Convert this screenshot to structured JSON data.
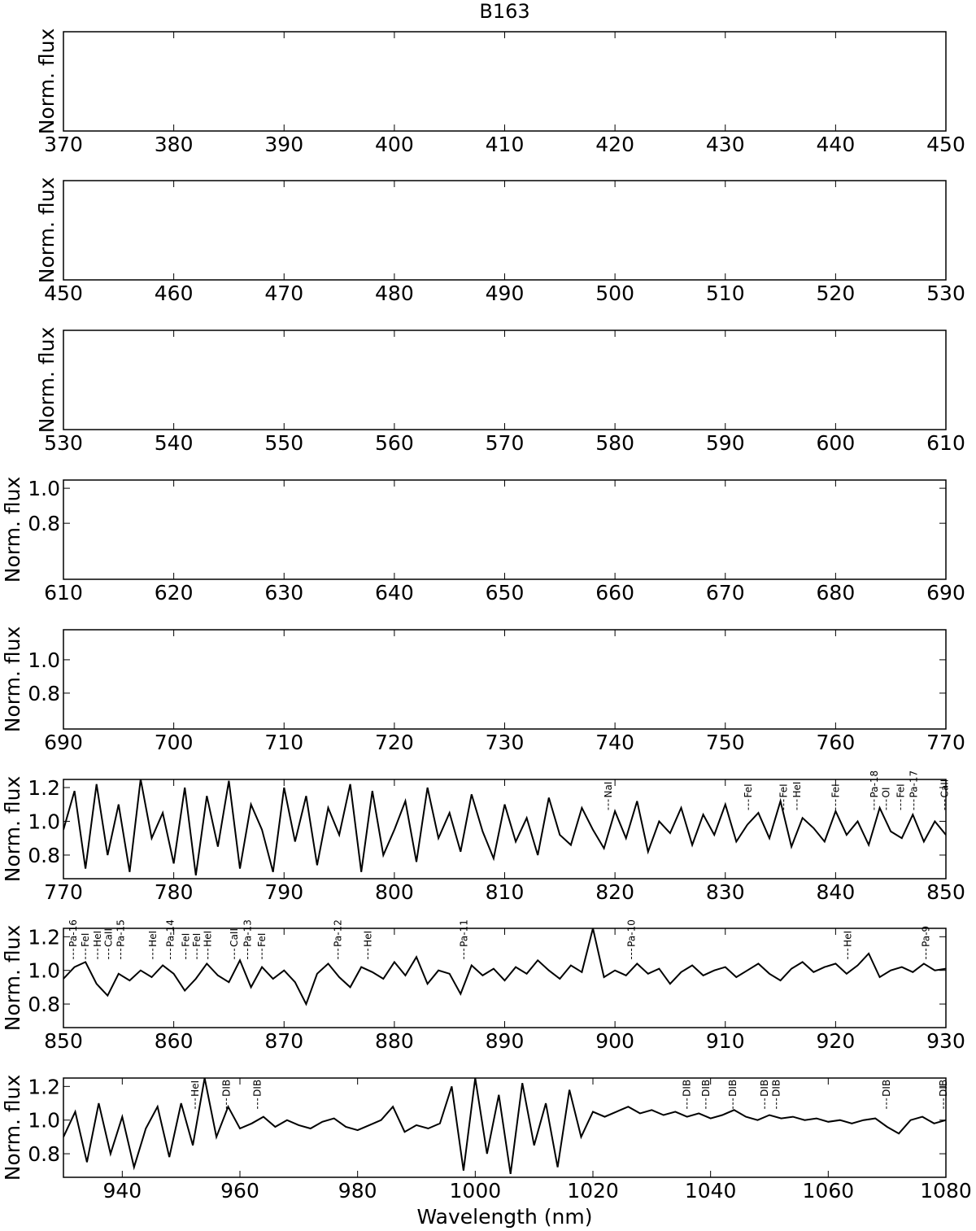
{
  "chart_data": [
    {
      "type": "line",
      "title": "B163",
      "ylabel": "Norm. flux",
      "xlim": [
        370,
        450
      ],
      "xticks": [
        370,
        380,
        390,
        400,
        410,
        420,
        430,
        440,
        450
      ]
    },
    {
      "type": "line",
      "ylabel": "Norm. flux",
      "xlim": [
        450,
        530
      ],
      "xticks": [
        450,
        460,
        470,
        480,
        490,
        500,
        510,
        520,
        530
      ]
    },
    {
      "type": "line",
      "ylabel": "Norm. flux",
      "xlim": [
        530,
        610
      ],
      "xticks": [
        530,
        540,
        550,
        560,
        570,
        580,
        590,
        600,
        610
      ]
    },
    {
      "type": "line",
      "ylabel": "Norm. flux",
      "xlim": [
        610,
        690
      ],
      "xticks": [
        610,
        620,
        630,
        640,
        650,
        660,
        670,
        680,
        690
      ],
      "ylim": [
        0.48,
        1.047
      ],
      "yticks": [
        0.8,
        {
          "value": 1.0,
          "label": "1.0"
        }
      ]
    },
    {
      "type": "line",
      "ylabel": "Norm. flux",
      "xlim": [
        690,
        770
      ],
      "xticks": [
        690,
        700,
        710,
        720,
        730,
        740,
        750,
        760,
        770
      ],
      "ylim": [
        0.585,
        1.18
      ],
      "yticks": [
        0.8,
        {
          "value": 1.0,
          "label": "1.0"
        }
      ]
    },
    {
      "type": "line",
      "ylabel": "Norm. flux",
      "xlim": [
        770,
        850
      ],
      "xticks": [
        770,
        780,
        790,
        800,
        810,
        820,
        830,
        840,
        850
      ],
      "ylim": [
        0.66,
        1.248
      ],
      "yticks": [
        0.8,
        {
          "value": 1.0,
          "label": "1.0"
        },
        1.2
      ],
      "color": "#000000",
      "x": [
        770,
        771,
        772,
        773,
        774,
        775,
        776,
        777,
        778,
        779,
        780,
        781,
        782,
        783,
        784,
        785,
        786,
        787,
        788,
        789,
        790,
        791,
        792,
        793,
        794,
        795,
        796,
        797,
        798,
        799,
        800,
        801,
        802,
        803,
        804,
        805,
        806,
        807,
        808,
        809,
        810,
        811,
        812,
        813,
        814,
        815,
        816,
        817,
        818,
        819,
        820,
        821,
        822,
        823,
        824,
        825,
        826,
        827,
        828,
        829,
        830,
        831,
        832,
        833,
        834,
        835,
        836,
        837,
        838,
        839,
        840,
        841,
        842,
        843,
        844,
        845,
        846,
        847,
        848,
        849,
        850
      ],
      "values": [
        0.95,
        1.18,
        0.72,
        1.22,
        0.8,
        1.1,
        0.7,
        1.25,
        0.9,
        1.05,
        0.75,
        1.2,
        0.68,
        1.15,
        0.85,
        1.24,
        0.72,
        1.1,
        0.95,
        0.7,
        1.2,
        0.88,
        1.15,
        0.74,
        1.08,
        0.92,
        1.22,
        0.7,
        1.18,
        0.8,
        0.95,
        1.12,
        0.76,
        1.2,
        0.9,
        1.05,
        0.82,
        1.16,
        0.94,
        0.78,
        1.1,
        0.88,
        1.02,
        0.8,
        1.14,
        0.92,
        0.86,
        1.08,
        0.95,
        0.84,
        1.06,
        0.9,
        1.12,
        0.82,
        1.0,
        0.93,
        1.08,
        0.86,
        1.04,
        0.92,
        1.1,
        0.88,
        0.98,
        1.05,
        0.9,
        1.12,
        0.85,
        1.02,
        0.96,
        0.88,
        1.06,
        0.92,
        1.0,
        0.86,
        1.08,
        0.94,
        0.9,
        1.04,
        0.88,
        1.0,
        0.92
      ],
      "annotations": [
        {
          "x": 819.4,
          "label": "NaI"
        },
        {
          "x": 832.1,
          "label": "FeI"
        },
        {
          "x": 835.3,
          "label": "FeI"
        },
        {
          "x": 836.5,
          "label": "HeI"
        },
        {
          "x": 840.0,
          "label": "FeI"
        },
        {
          "x": 843.5,
          "label": "Pa-18"
        },
        {
          "x": 844.6,
          "label": "OI"
        },
        {
          "x": 845.9,
          "label": "FeI"
        },
        {
          "x": 847.1,
          "label": "Pa-17"
        },
        {
          "x": 849.9,
          "label": "CaII"
        }
      ]
    },
    {
      "type": "line",
      "ylabel": "Norm. flux",
      "xlim": [
        850,
        930
      ],
      "xticks": [
        850,
        860,
        870,
        880,
        890,
        900,
        910,
        920,
        930
      ],
      "ylim": [
        0.66,
        1.25
      ],
      "yticks": [
        0.8,
        {
          "value": 1.0,
          "label": "1.0"
        },
        1.2
      ],
      "color": "#000000",
      "x": [
        850,
        851,
        852,
        853,
        854,
        855,
        856,
        857,
        858,
        859,
        860,
        861,
        862,
        863,
        864,
        865,
        866,
        867,
        868,
        869,
        870,
        871,
        872,
        873,
        874,
        875,
        876,
        877,
        878,
        879,
        880,
        881,
        882,
        883,
        884,
        885,
        886,
        887,
        888,
        889,
        890,
        891,
        892,
        893,
        894,
        895,
        896,
        897,
        898,
        899,
        900,
        901,
        902,
        903,
        904,
        905,
        906,
        907,
        908,
        909,
        910,
        911,
        912,
        913,
        914,
        915,
        916,
        917,
        918,
        919,
        920,
        921,
        922,
        923,
        924,
        925,
        926,
        927,
        928,
        929,
        930
      ],
      "values": [
        0.95,
        1.02,
        1.05,
        0.92,
        0.85,
        0.98,
        0.94,
        1.0,
        0.96,
        1.03,
        0.98,
        0.88,
        0.95,
        1.04,
        0.97,
        0.93,
        1.06,
        0.9,
        1.02,
        0.95,
        1.0,
        0.93,
        0.8,
        0.98,
        1.04,
        0.96,
        0.9,
        1.02,
        0.99,
        0.95,
        1.05,
        0.97,
        1.08,
        0.92,
        1.0,
        0.98,
        0.86,
        1.03,
        0.97,
        1.01,
        0.94,
        1.02,
        0.98,
        1.06,
        1.0,
        0.95,
        1.03,
        0.99,
        1.25,
        0.96,
        1.0,
        0.97,
        1.04,
        0.98,
        1.01,
        0.92,
        0.99,
        1.03,
        0.97,
        1.0,
        1.02,
        0.96,
        1.0,
        1.04,
        0.98,
        0.94,
        1.01,
        1.05,
        0.99,
        1.02,
        1.04,
        0.98,
        1.03,
        1.1,
        0.96,
        1.0,
        1.02,
        0.99,
        1.04,
        1.0,
        1.01
      ],
      "annotations": [
        {
          "x": 850.9,
          "label": "Pa-16"
        },
        {
          "x": 852.0,
          "label": "FeI"
        },
        {
          "x": 853.1,
          "label": "HeI"
        },
        {
          "x": 854.1,
          "label": "CaII"
        },
        {
          "x": 855.2,
          "label": "Pa-15"
        },
        {
          "x": 858.1,
          "label": "HeI"
        },
        {
          "x": 859.7,
          "label": "Pa-14"
        },
        {
          "x": 861.1,
          "label": "FeI"
        },
        {
          "x": 862.1,
          "label": "FeI"
        },
        {
          "x": 863.1,
          "label": "HeI"
        },
        {
          "x": 865.5,
          "label": "CaII"
        },
        {
          "x": 866.7,
          "label": "Pa-13"
        },
        {
          "x": 868.0,
          "label": "FeI"
        },
        {
          "x": 874.9,
          "label": "Pa-12"
        },
        {
          "x": 877.6,
          "label": "HeI"
        },
        {
          "x": 886.3,
          "label": "Pa-11"
        },
        {
          "x": 901.5,
          "label": "Pa-10"
        },
        {
          "x": 921.1,
          "label": "HeI"
        },
        {
          "x": 928.2,
          "label": "Pa-9"
        }
      ]
    },
    {
      "type": "line",
      "ylabel": "Norm. flux",
      "xlabel": "Wavelength (nm)",
      "xlim": [
        930,
        1080
      ],
      "xticks": [
        940,
        960,
        980,
        1000,
        1020,
        1040,
        1060,
        1080
      ],
      "ylim": [
        0.66,
        1.25
      ],
      "yticks": [
        0.8,
        {
          "value": 1.0,
          "label": "1.0"
        },
        1.2
      ],
      "color": "#000000",
      "x": [
        930,
        932,
        934,
        936,
        938,
        940,
        942,
        944,
        946,
        948,
        950,
        952,
        954,
        956,
        958,
        960,
        962,
        964,
        966,
        968,
        970,
        972,
        974,
        976,
        978,
        980,
        982,
        984,
        986,
        988,
        990,
        992,
        994,
        996,
        998,
        1000,
        1002,
        1004,
        1006,
        1008,
        1010,
        1012,
        1014,
        1016,
        1018,
        1020,
        1022,
        1024,
        1026,
        1028,
        1030,
        1032,
        1034,
        1036,
        1038,
        1040,
        1042,
        1044,
        1046,
        1048,
        1050,
        1052,
        1054,
        1056,
        1058,
        1060,
        1062,
        1064,
        1066,
        1068,
        1070,
        1072,
        1074,
        1076,
        1078,
        1080
      ],
      "values": [
        0.9,
        1.05,
        0.75,
        1.1,
        0.8,
        1.02,
        0.72,
        0.95,
        1.08,
        0.78,
        1.1,
        0.85,
        1.25,
        0.9,
        1.08,
        0.95,
        0.98,
        1.02,
        0.96,
        1.0,
        0.97,
        0.95,
        0.99,
        1.01,
        0.96,
        0.94,
        0.97,
        1.0,
        1.08,
        0.93,
        0.97,
        0.95,
        0.98,
        1.2,
        0.7,
        1.25,
        0.8,
        1.15,
        0.68,
        1.22,
        0.85,
        1.1,
        0.72,
        1.18,
        0.9,
        1.05,
        1.02,
        1.05,
        1.08,
        1.04,
        1.06,
        1.03,
        1.05,
        1.02,
        1.04,
        1.01,
        1.03,
        1.06,
        1.02,
        1.0,
        1.03,
        1.01,
        1.02,
        1.0,
        1.01,
        0.99,
        1.0,
        0.98,
        1.0,
        1.01,
        0.96,
        0.92,
        1.0,
        1.02,
        0.98,
        1.0
      ],
      "annotations": [
        {
          "x": 952.4,
          "label": "HeI"
        },
        {
          "x": 957.7,
          "label": "DIB"
        },
        {
          "x": 963.0,
          "label": "DIB"
        },
        {
          "x": 1036.0,
          "label": "DIB"
        },
        {
          "x": 1039.2,
          "label": "DIB"
        },
        {
          "x": 1043.8,
          "label": "DIB"
        },
        {
          "x": 1049.2,
          "label": "DIB"
        },
        {
          "x": 1051.2,
          "label": "DIB"
        },
        {
          "x": 1069.9,
          "label": "DIB"
        },
        {
          "x": 1079.6,
          "label": "DIB"
        }
      ]
    }
  ]
}
